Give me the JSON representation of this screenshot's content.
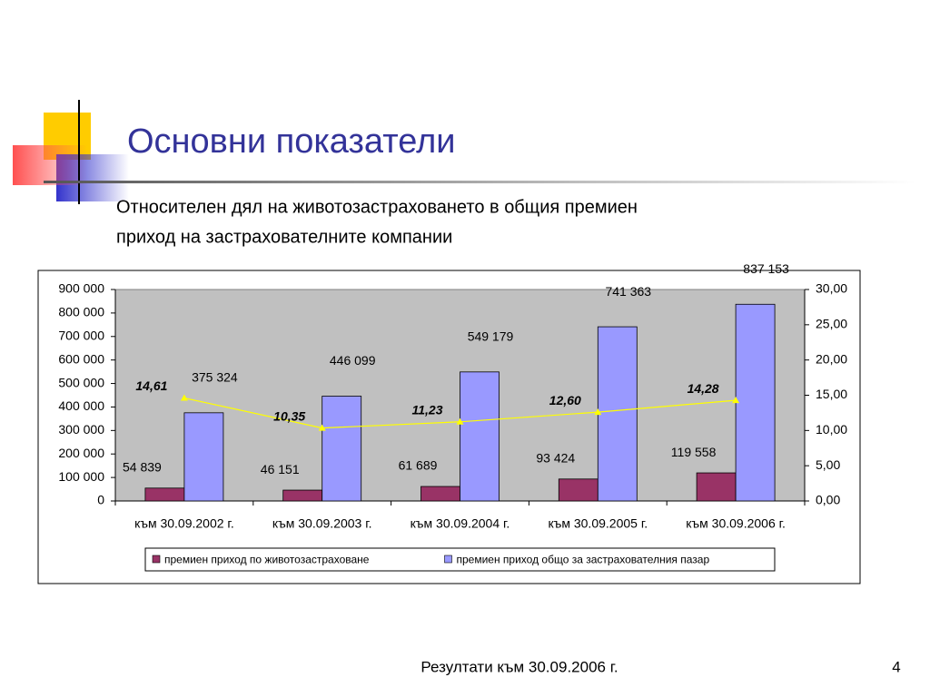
{
  "slide": {
    "title": "Основни показатели",
    "subtitle_lines": [
      "Относителен дял на животозастраховането в общия премиен",
      "приход на застрахователните компании"
    ],
    "footer": "Резултати към 30.09.2006 г.",
    "page_number": "4"
  },
  "chart_data": {
    "type": "bar",
    "categories": [
      "към 30.09.2002 г.",
      "към 30.09.2003 г.",
      "към 30.09.2004 г.",
      "към 30.09.2005 г.",
      "към 30.09.2006 г."
    ],
    "series": [
      {
        "name": "премиен приход по животозастраховане",
        "color": "#993366",
        "values": [
          54839,
          46151,
          61689,
          93424,
          119558
        ],
        "value_labels": [
          "54 839",
          "46 151",
          "61 689",
          "93 424",
          "119 558"
        ]
      },
      {
        "name": "премиен приход общо за застрахователния пазар",
        "color": "#9999ff",
        "values": [
          375324,
          446099,
          549179,
          741363,
          837153
        ],
        "value_labels": [
          "375 324",
          "446 099",
          "549 179",
          "741 363",
          "837 153"
        ]
      },
      {
        "type": "line",
        "axis": "y2",
        "color": "#ffff00",
        "values": [
          14.61,
          10.35,
          11.23,
          12.6,
          14.28
        ],
        "value_labels": [
          "14,61",
          "10,35",
          "11,23",
          "12,60",
          "14,28"
        ]
      }
    ],
    "ylim": [
      0,
      900000
    ],
    "yticks": [
      0,
      {
        "value": 100000,
        "label": "100 000"
      },
      {
        "value": 200000,
        "label": "200 000"
      },
      {
        "value": 300000,
        "label": "300 000"
      },
      {
        "value": 400000,
        "label": "400 000"
      },
      {
        "value": 500000,
        "label": "500 000"
      },
      {
        "value": 600000,
        "label": "600 000"
      },
      {
        "value": 700000,
        "label": "700 000"
      },
      {
        "value": 800000,
        "label": "800 000"
      },
      {
        "value": 900000,
        "label": "900 000"
      }
    ],
    "y2lim": [
      0,
      30
    ],
    "y2ticks": [
      {
        "value": 0,
        "label": "0,00"
      },
      {
        "value": 5,
        "label": "5,00"
      },
      {
        "value": 10,
        "label": "10,00"
      },
      {
        "value": 15,
        "label": "15,00"
      },
      {
        "value": 20,
        "label": "20,00"
      },
      {
        "value": 25,
        "label": "25,00"
      },
      {
        "value": 30,
        "label": "30,00"
      }
    ],
    "legend": "bottom"
  }
}
